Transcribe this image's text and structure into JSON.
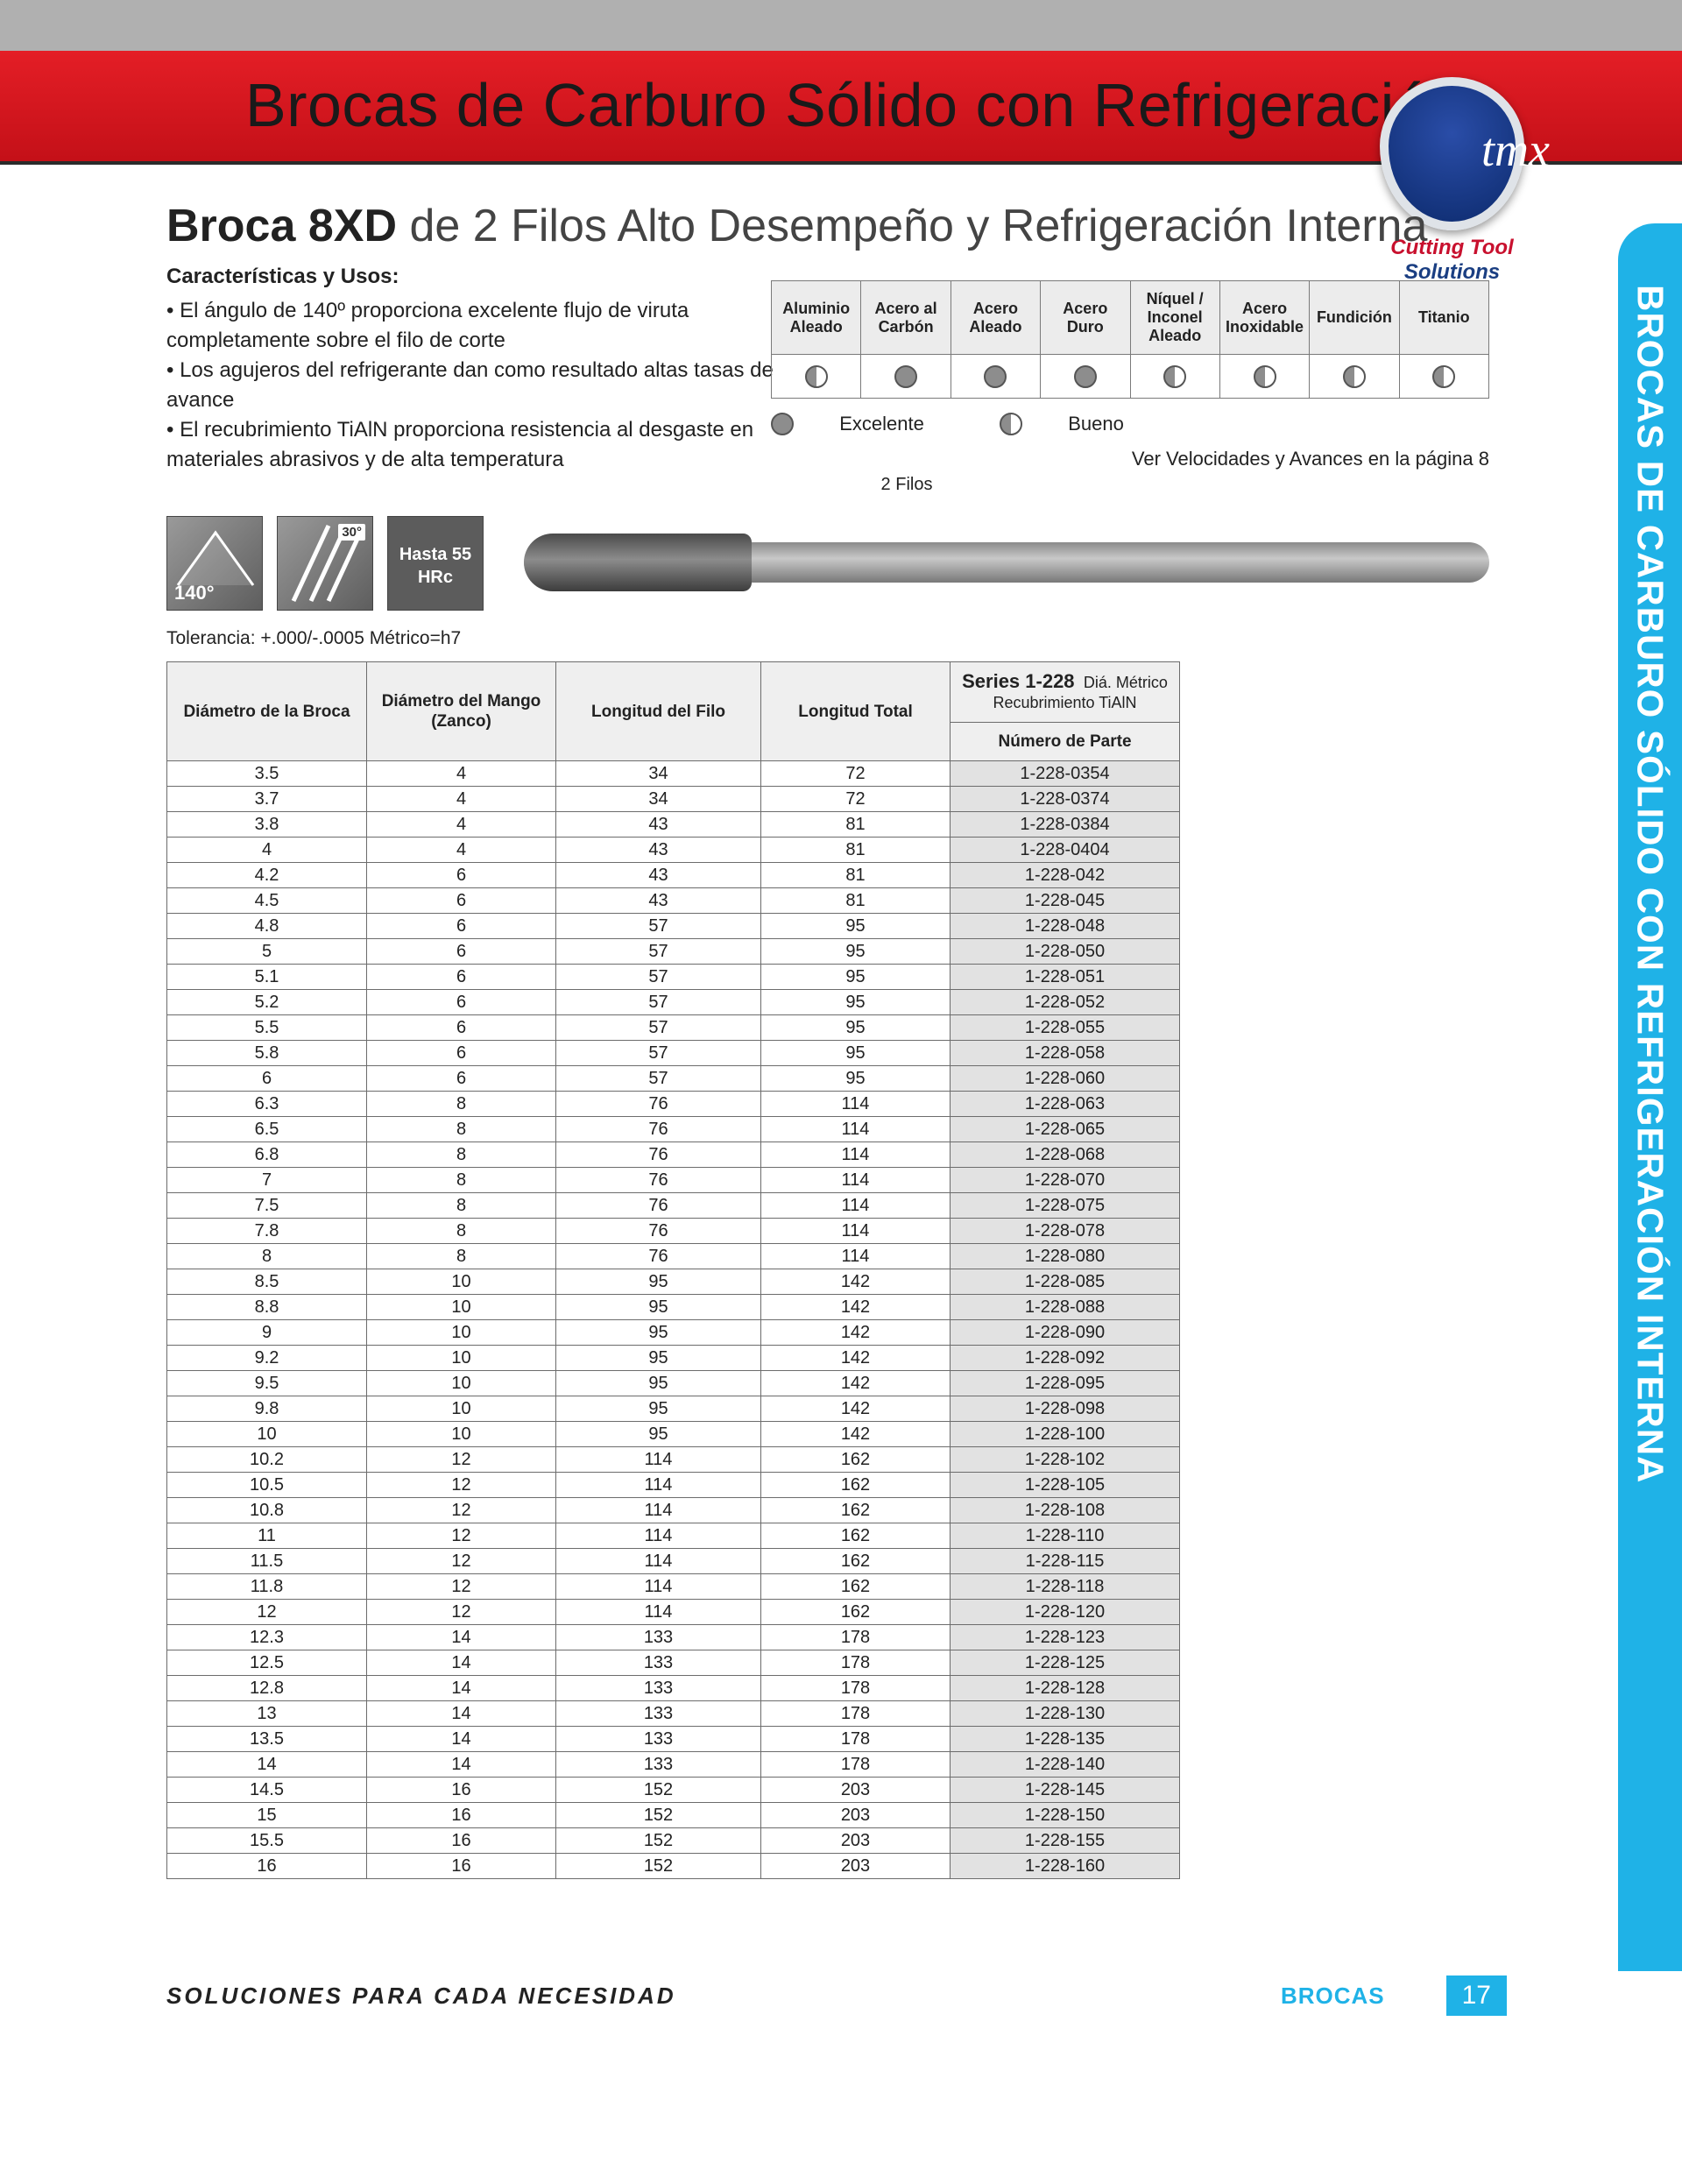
{
  "header": {
    "title": "Brocas de Carburo Sólido con Refrigeración"
  },
  "brand": {
    "name": "tmx",
    "tag1": "Cutting Tool",
    "tag2": "Solutions"
  },
  "sidetab": "BROCAS DE CARBURO SÓLIDO CON REFRIGERACIÓN INTERNA",
  "h2": {
    "bold": "Broca 8XD",
    "rest": " de 2 Filos Alto Desempeño y Refrigeración Interna"
  },
  "subhead": "Características y Usos:",
  "features": [
    "El ángulo de 140º proporciona excelente flujo de viruta completamente sobre el filo de corte",
    "Los agujeros del refrigerante dan como resultado altas tasas de avance",
    "El recubrimiento TiAlN proporciona resistencia al desgaste en materiales abrasivos y de alta temperatura"
  ],
  "iconrow": {
    "caption": "2 Filos",
    "angle": "140°",
    "helix": "30°",
    "hardness_l1": "Hasta 55",
    "hardness_l2": "HRc"
  },
  "mat": {
    "cols": [
      "Aluminio Aleado",
      "Acero al Carbón",
      "Acero Aleado",
      "Acero Duro",
      "Níquel / Inconel Aleado",
      "Acero Inoxidable",
      "Fundición",
      "Titanio"
    ],
    "vals": [
      "half",
      "full",
      "full",
      "full",
      "half",
      "half",
      "half",
      "half"
    ],
    "legend_ex": "Excelente",
    "legend_bu": "Bueno",
    "see": "Ver Velocidades y Avances en la página 8"
  },
  "tol": "Tolerancia: +.000/-.0005 Métrico=h7",
  "spec": {
    "h": {
      "c1": "Diámetro de la Broca",
      "c2": "Diámetro del Mango (Zanco)",
      "c3": "Longitud del Filo",
      "c4": "Longitud Total",
      "c5a": "Series 1-228",
      "c5b": "Diá. Métrico",
      "c5c": "Recubrimiento TiAlN",
      "c5d": "Número de Parte"
    },
    "rows": [
      [
        "3.5",
        "4",
        "34",
        "72",
        "1-228-0354"
      ],
      [
        "3.7",
        "4",
        "34",
        "72",
        "1-228-0374"
      ],
      [
        "3.8",
        "4",
        "43",
        "81",
        "1-228-0384"
      ],
      [
        "4",
        "4",
        "43",
        "81",
        "1-228-0404"
      ],
      [
        "4.2",
        "6",
        "43",
        "81",
        "1-228-042"
      ],
      [
        "4.5",
        "6",
        "43",
        "81",
        "1-228-045"
      ],
      [
        "4.8",
        "6",
        "57",
        "95",
        "1-228-048"
      ],
      [
        "5",
        "6",
        "57",
        "95",
        "1-228-050"
      ],
      [
        "5.1",
        "6",
        "57",
        "95",
        "1-228-051"
      ],
      [
        "5.2",
        "6",
        "57",
        "95",
        "1-228-052"
      ],
      [
        "5.5",
        "6",
        "57",
        "95",
        "1-228-055"
      ],
      [
        "5.8",
        "6",
        "57",
        "95",
        "1-228-058"
      ],
      [
        "6",
        "6",
        "57",
        "95",
        "1-228-060"
      ],
      [
        "6.3",
        "8",
        "76",
        "114",
        "1-228-063"
      ],
      [
        "6.5",
        "8",
        "76",
        "114",
        "1-228-065"
      ],
      [
        "6.8",
        "8",
        "76",
        "114",
        "1-228-068"
      ],
      [
        "7",
        "8",
        "76",
        "114",
        "1-228-070"
      ],
      [
        "7.5",
        "8",
        "76",
        "114",
        "1-228-075"
      ],
      [
        "7.8",
        "8",
        "76",
        "114",
        "1-228-078"
      ],
      [
        "8",
        "8",
        "76",
        "114",
        "1-228-080"
      ],
      [
        "8.5",
        "10",
        "95",
        "142",
        "1-228-085"
      ],
      [
        "8.8",
        "10",
        "95",
        "142",
        "1-228-088"
      ],
      [
        "9",
        "10",
        "95",
        "142",
        "1-228-090"
      ],
      [
        "9.2",
        "10",
        "95",
        "142",
        "1-228-092"
      ],
      [
        "9.5",
        "10",
        "95",
        "142",
        "1-228-095"
      ],
      [
        "9.8",
        "10",
        "95",
        "142",
        "1-228-098"
      ],
      [
        "10",
        "10",
        "95",
        "142",
        "1-228-100"
      ],
      [
        "10.2",
        "12",
        "114",
        "162",
        "1-228-102"
      ],
      [
        "10.5",
        "12",
        "114",
        "162",
        "1-228-105"
      ],
      [
        "10.8",
        "12",
        "114",
        "162",
        "1-228-108"
      ],
      [
        "11",
        "12",
        "114",
        "162",
        "1-228-110"
      ],
      [
        "11.5",
        "12",
        "114",
        "162",
        "1-228-115"
      ],
      [
        "11.8",
        "12",
        "114",
        "162",
        "1-228-118"
      ],
      [
        "12",
        "12",
        "114",
        "162",
        "1-228-120"
      ],
      [
        "12.3",
        "14",
        "133",
        "178",
        "1-228-123"
      ],
      [
        "12.5",
        "14",
        "133",
        "178",
        "1-228-125"
      ],
      [
        "12.8",
        "14",
        "133",
        "178",
        "1-228-128"
      ],
      [
        "13",
        "14",
        "133",
        "178",
        "1-228-130"
      ],
      [
        "13.5",
        "14",
        "133",
        "178",
        "1-228-135"
      ],
      [
        "14",
        "14",
        "133",
        "178",
        "1-228-140"
      ],
      [
        "14.5",
        "16",
        "152",
        "203",
        "1-228-145"
      ],
      [
        "15",
        "16",
        "152",
        "203",
        "1-228-150"
      ],
      [
        "15.5",
        "16",
        "152",
        "203",
        "1-228-155"
      ],
      [
        "16",
        "16",
        "152",
        "203",
        "1-228-160"
      ]
    ]
  },
  "footer": {
    "left": "SOLUCIONES PARA CADA NECESIDAD",
    "cat": "BROCAS",
    "page": "17"
  }
}
